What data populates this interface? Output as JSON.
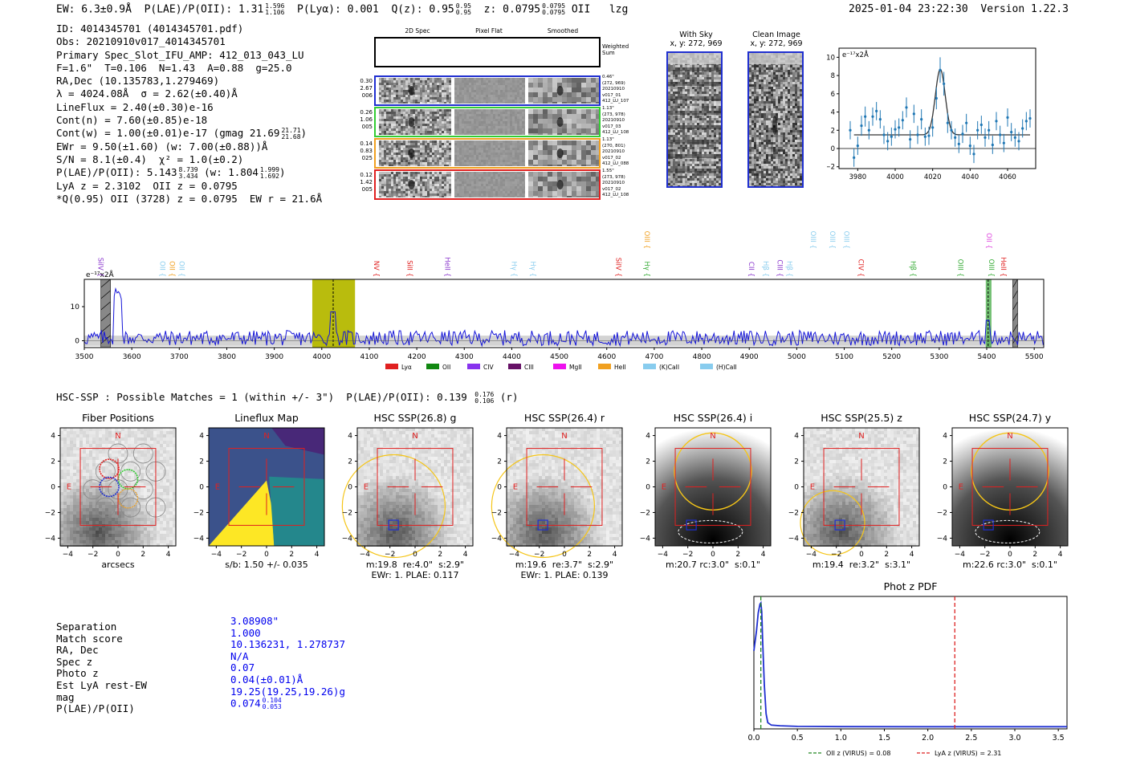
{
  "header": {
    "ew": "EW: 6.3±0.9Å",
    "plae_label": "P(LAE)/P(OII): 1.31",
    "plae_sup": "1.596",
    "plae_sub": "1.106",
    "plya": "P(Lyα): 0.001",
    "qz_label": "Q(z): 0.95",
    "qz_sup": "0.95",
    "qz_sub": "0.95",
    "z_label": "z: 0.0795",
    "z_sup": "0.0795",
    "z_sub": "0.0795",
    "line": "OII",
    "flag": "lzg",
    "timestamp": "2025-01-04 23:22:30",
    "version": "Version 1.22.3"
  },
  "info": {
    "id": "ID: 4014345701 (4014345701.pdf)",
    "obs": "Obs: 20210910v017_4014345701",
    "primary": "Primary Spec_Slot_IFU_AMP: 412_013_043_LU",
    "fwhm": "F=1.6\"  T=0.106  N=1.43  A=0.88  g=25.0",
    "radec": "RA,Dec (10.135783,1.279469)",
    "lambda": "λ = 4024.08Å  σ = 2.62(±0.40)Å",
    "lineflux": "LineFlux = 2.40(±0.30)e-16",
    "contn": "Cont(n) = 7.60(±0.85)e-18",
    "contw": "Cont(w) = 1.00(±0.01)e-17 (gmag 21.69",
    "contw_sup": "21.71",
    "contw_sub": "21.68",
    "contw_end": ")",
    "ewr": "EWr = 9.50(±1.60) (w: 7.00(±0.88))Å",
    "sn": "S/N = 8.1(±0.4)  χ² = 1.0(±0.2)",
    "plae": "P(LAE)/P(OII): 5.143",
    "plae_sup": "8.739",
    "plae_sub": "3.434",
    "plae_w": "(w: 1.804",
    "plae_w_sup": "1.999",
    "plae_w_sub": "1.692",
    "plae_end": ")",
    "lya": "LyA z = 2.3102  OII z = 0.0795",
    "q": "*Q(0.95) OII (3728) z = 0.0795  EW r = 21.6Å"
  },
  "spec2d": {
    "col_titles": [
      "2D Spec",
      "Pixel Flat",
      "Smoothed"
    ],
    "weighted_label": "Weighted Sum",
    "rows": [
      {
        "left": [
          "0.30",
          "2.67",
          "006"
        ],
        "right": [
          "0.46\"",
          "(272, 969)",
          "20210910",
          "v017_01",
          "412_LU_107"
        ],
        "color": "#1f2fd0"
      },
      {
        "left": [
          "0.26",
          "1.06",
          "005"
        ],
        "right": [
          "1.13\"",
          "(273, 978)",
          "20210910",
          "v017_03",
          "412_LU_108"
        ],
        "color": "#33cc33"
      },
      {
        "left": [
          "0.14",
          "0.83",
          "025"
        ],
        "right": [
          "1.13\"",
          "(270, 801)",
          "20210910",
          "v017_02",
          "412_LU_088"
        ],
        "color": "#f0a020"
      },
      {
        "left": [
          "0.12",
          "1.42",
          "005"
        ],
        "right": [
          "1.55\"",
          "(273, 978)",
          "20210910",
          "v017_02",
          "412_LU_108"
        ],
        "color": "#e02020"
      }
    ]
  },
  "sky_panels": {
    "with_sky_title": "With Sky",
    "with_sky_coords": "x, y: 272, 969",
    "clean_title": "Clean Image",
    "clean_coords": "x, y: 272, 969"
  },
  "zoom_chart": {
    "ylabel_unit": "e⁻¹⁷x2Å"
  },
  "full_spectrum": {
    "ylabel_unit": "e⁻¹⁷x2Å",
    "line_labels": [
      {
        "label": "SiIV",
        "wave": 3530,
        "color": "#8833cc"
      },
      {
        "label": "OII",
        "wave": 3660,
        "color": "#88ccee"
      },
      {
        "label": "OII",
        "wave": 3680,
        "color": "#f0a020"
      },
      {
        "label": "OII",
        "wave": 3700,
        "color": "#88ccee"
      },
      {
        "label": "NV",
        "wave": 4110,
        "color": "#e02020"
      },
      {
        "label": "SiII",
        "wave": 4180,
        "color": "#e02020"
      },
      {
        "label": "HeII",
        "wave": 4260,
        "color": "#8833cc"
      },
      {
        "label": "Hγ",
        "wave": 4400,
        "color": "#88ccee"
      },
      {
        "label": "Hγ",
        "wave": 4440,
        "color": "#88ccee"
      },
      {
        "label": "SiIV",
        "wave": 4620,
        "color": "#e02020"
      },
      {
        "label": "OIII",
        "wave": 4680,
        "color": "#f0a020"
      },
      {
        "label": "Hγ",
        "wave": 4680,
        "color": "#33aa33"
      },
      {
        "label": "CII",
        "wave": 4900,
        "color": "#8833cc"
      },
      {
        "label": "Hβ",
        "wave": 4930,
        "color": "#88ccee"
      },
      {
        "label": "CIII",
        "wave": 4960,
        "color": "#8833cc"
      },
      {
        "label": "Hβ",
        "wave": 4980,
        "color": "#88ccee"
      },
      {
        "label": "OIII",
        "wave": 5030,
        "color": "#88ccee"
      },
      {
        "label": "OIII",
        "wave": 5070,
        "color": "#88ccee"
      },
      {
        "label": "OIII",
        "wave": 5100,
        "color": "#88ccee"
      },
      {
        "label": "CIV",
        "wave": 5130,
        "color": "#e02020"
      },
      {
        "label": "Hβ",
        "wave": 5240,
        "color": "#33aa33"
      },
      {
        "label": "OIII",
        "wave": 5340,
        "color": "#33aa33"
      },
      {
        "label": "OII",
        "wave": 5400,
        "color": "#dd44dd"
      },
      {
        "label": "OIII",
        "wave": 5405,
        "color": "#33aa33"
      },
      {
        "label": "HeII",
        "wave": 5430,
        "color": "#e02020"
      }
    ],
    "legend": [
      {
        "label": "Lyα",
        "color": "#e02020"
      },
      {
        "label": "OII",
        "color": "#118811"
      },
      {
        "label": "CIV",
        "color": "#8833ee"
      },
      {
        "label": "CIII",
        "color": "#661166"
      },
      {
        "label": "MgII",
        "color": "#ee11ee"
      },
      {
        "label": "HeII",
        "color": "#f0a020"
      },
      {
        "label": "(K)CaII",
        "color": "#88ccee"
      },
      {
        "label": "(H)CaII",
        "color": "#88ccee"
      }
    ]
  },
  "hsc": {
    "summary_label": "HSC-SSP : Possible Matches = 1 (within +/- 3\")  P(LAE)/P(OII): 0.139",
    "summary_sup": "0.176",
    "summary_sub": "0.106",
    "summary_end": "(r)",
    "panels": [
      {
        "title": "Fiber Positions",
        "sub1": "arcsecs",
        "sub2": ""
      },
      {
        "title": "Lineflux Map",
        "sub1": "s/b: 1.50 +/- 0.035",
        "sub2": ""
      },
      {
        "title": "HSC SSP(26.8) g",
        "sub1": "m:19.8  re:4.0\"  s:2.9\"",
        "sub2": "EWr: 1. PLAE: 0.117"
      },
      {
        "title": "HSC SSP(26.4) r",
        "sub1": "m:19.6  re:3.7\"  s:2.9\"",
        "sub2": "EWr: 1. PLAE: 0.139"
      },
      {
        "title": "HSC SSP(26.4) i",
        "sub1": "m:20.7 rc:3.0\"  s:0.1\"",
        "sub2": ""
      },
      {
        "title": "HSC SSP(25.5) z",
        "sub1": "m:19.4  re:3.2\"  s:3.1\"",
        "sub2": ""
      },
      {
        "title": "HSC SSP(24.7) y",
        "sub1": "m:22.6 rc:3.0\"  s:0.1\"",
        "sub2": ""
      }
    ],
    "north": "N",
    "east": "E",
    "ticks": [
      "−4",
      "−2",
      "0",
      "2",
      "4"
    ]
  },
  "match": {
    "rows": [
      {
        "label": "Separation",
        "value": "3.08908\""
      },
      {
        "label": "Match score",
        "value": "1.000"
      },
      {
        "label": "RA, Dec",
        "value": "10.136231, 1.278737"
      },
      {
        "label": "Spec z",
        "value": "N/A"
      },
      {
        "label": "Photo z",
        "value": "0.07"
      },
      {
        "label": "Est LyA rest-EW",
        "value": "0.04(±0.01)Å"
      },
      {
        "label": "mag",
        "value": "19.25(19.25,19.26)g"
      },
      {
        "label": "P(LAE)/P(OII)",
        "value": "0.074"
      }
    ],
    "plae_sup": "0.104",
    "plae_sub": "0.053"
  },
  "chart_data": [
    {
      "type": "line",
      "name": "zoom-emission-line",
      "title": "",
      "xlabel": "",
      "ylabel": "e⁻¹⁷x2Å",
      "xlim": [
        3970,
        4075
      ],
      "ylim": [
        -2.2,
        11
      ],
      "xticks": [
        3980,
        4000,
        4020,
        4040,
        4060
      ],
      "yticks": [
        -2,
        0,
        2,
        4,
        6,
        8,
        10
      ],
      "fit_baseline": 1.5,
      "fit_peak": 8.7,
      "fit_center": 4024.08,
      "fit_sigma": 2.62,
      "points_x": [
        3976,
        3978,
        3980,
        3982,
        3984,
        3986,
        3988,
        3990,
        3992,
        3994,
        3996,
        3998,
        4000,
        4002,
        4004,
        4006,
        4008,
        4010,
        4012,
        4014,
        4016,
        4018,
        4020,
        4022,
        4024,
        4026,
        4028,
        4030,
        4032,
        4034,
        4036,
        4038,
        4040,
        4042,
        4044,
        4046,
        4048,
        4050,
        4052,
        4054,
        4056,
        4058,
        4060,
        4062,
        4064,
        4066,
        4068,
        4070,
        4072
      ],
      "points_y": [
        2.0,
        -1.0,
        0.3,
        2.5,
        3.5,
        2.0,
        3.5,
        4.1,
        3.2,
        1.5,
        0.8,
        1.3,
        2.1,
        2.3,
        3.1,
        4.5,
        1.0,
        3.8,
        1.5,
        3.2,
        1.3,
        1.4,
        2.3,
        5.5,
        8.6,
        7.1,
        2.8,
        2.0,
        1.2,
        0.5,
        1.6,
        2.8,
        0.3,
        -0.6,
        2.0,
        2.6,
        1.2,
        2.0,
        0.4,
        3.0,
        1.5,
        0.6,
        3.4,
        1.8,
        1.2,
        0.8,
        2.2,
        3.0,
        3.3
      ],
      "errors": [
        1.0,
        1.0,
        1.0,
        1.1,
        1.1,
        1.0,
        1.0,
        1.0,
        1.0,
        1.0,
        1.0,
        1.0,
        1.0,
        1.0,
        1.0,
        1.1,
        1.0,
        1.0,
        1.0,
        1.1,
        1.0,
        1.0,
        1.0,
        1.2,
        1.4,
        1.3,
        1.1,
        1.0,
        1.0,
        1.0,
        1.0,
        1.0,
        1.0,
        1.0,
        1.0,
        1.0,
        1.0,
        1.0,
        1.0,
        1.0,
        1.0,
        1.0,
        1.0,
        1.0,
        1.0,
        1.0,
        1.0,
        1.0,
        1.0
      ]
    },
    {
      "type": "line",
      "name": "full-spectrum",
      "title": "",
      "xlabel": "",
      "ylabel": "e⁻¹⁷x2Å",
      "xlim": [
        3500,
        5520
      ],
      "ylim": [
        -2,
        18
      ],
      "xticks": [
        3500,
        3600,
        3700,
        3800,
        3900,
        4000,
        4100,
        4200,
        4300,
        4400,
        4500,
        4600,
        4700,
        4800,
        4900,
        5000,
        5100,
        5200,
        5300,
        5400,
        5500
      ],
      "yticks": [
        0,
        10
      ],
      "highlight_band": [
        3980,
        4070
      ],
      "line_marker": 4024,
      "oii_band": [
        5398,
        5410
      ],
      "oii_marker": 5403,
      "hatched": [
        [
          3535,
          3555
        ],
        [
          5455,
          5465
        ]
      ]
    },
    {
      "type": "line",
      "name": "photo-z-pdf",
      "title": "Phot z PDF",
      "xlabel": "",
      "ylabel": "",
      "xlim": [
        0,
        3.6
      ],
      "xticks": [
        0.0,
        0.5,
        1.0,
        1.5,
        2.0,
        2.5,
        3.0,
        3.5
      ],
      "x": [
        0.0,
        0.03,
        0.05,
        0.07,
        0.08,
        0.09,
        0.1,
        0.12,
        0.14,
        0.16,
        0.2,
        0.3,
        0.5,
        1.0,
        2.0,
        3.0,
        3.6
      ],
      "y": [
        0.62,
        0.78,
        0.92,
        0.99,
        1.0,
        0.93,
        0.72,
        0.35,
        0.12,
        0.05,
        0.03,
        0.025,
        0.02,
        0.018,
        0.017,
        0.017,
        0.017
      ],
      "legend": [
        {
          "label": "OII z (VIRUS) = 0.08",
          "value": 0.08,
          "color": "#228822"
        },
        {
          "label": "LyA z (VIRUS) = 2.31",
          "value": 2.31,
          "color": "#dd2222"
        }
      ]
    }
  ]
}
